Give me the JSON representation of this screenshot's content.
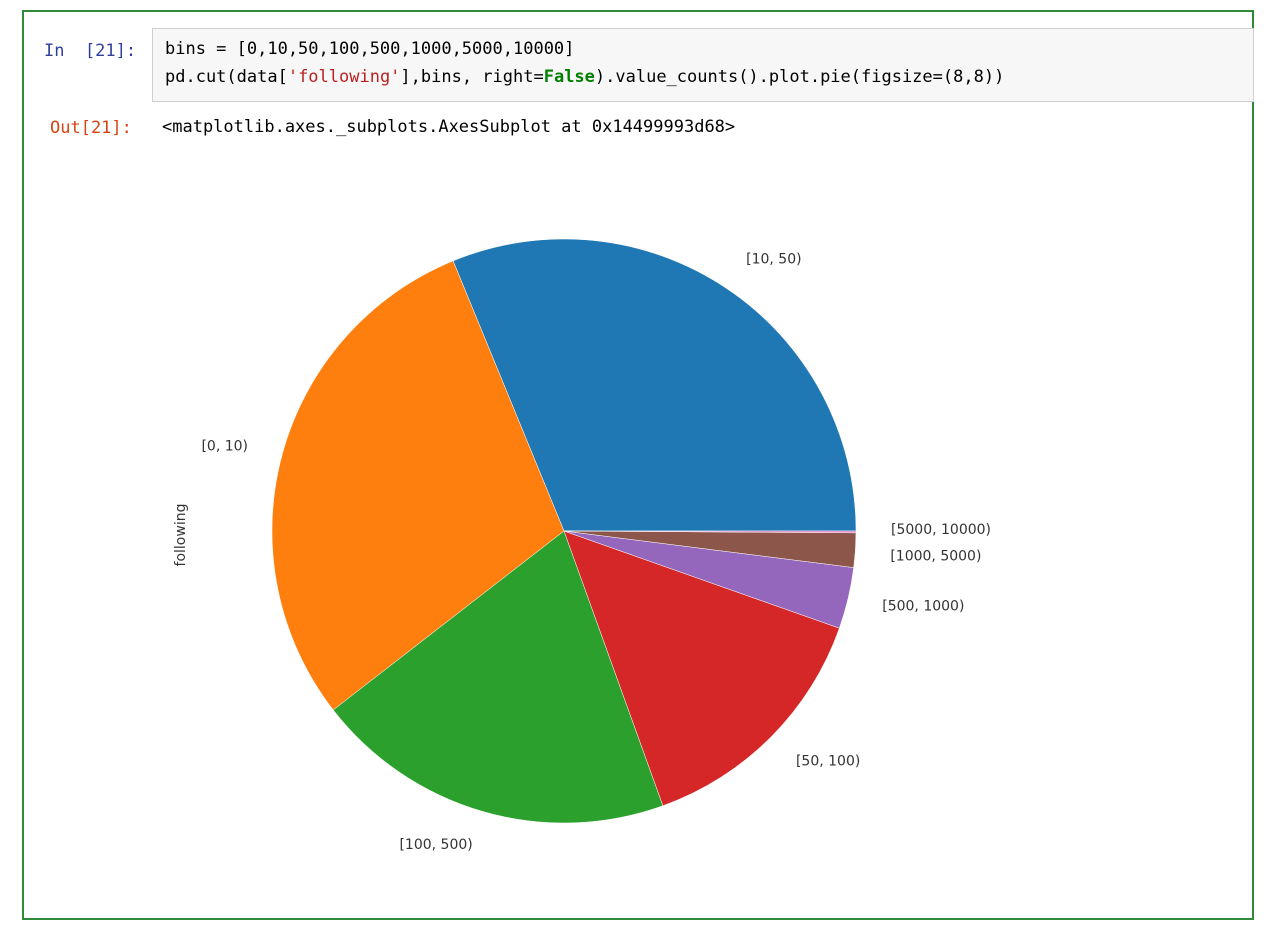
{
  "cell": {
    "in_prompt": "In  [21]:",
    "out_prompt": "Out[21]:",
    "code_line1": "bins = [0,10,50,100,500,1000,5000,10000]",
    "code_line2_a": "pd.cut(data[",
    "code_line2_str": "'following'",
    "code_line2_b": "],bins, right=",
    "code_line2_kw": "False",
    "code_line2_c": ").value_counts().plot.pie(figsize=(8,8))",
    "output_text": "<matplotlib.axes._subplots.AxesSubplot at 0x14499993d68>"
  },
  "colors": {
    "frame": "#2e8b3a",
    "blue": "#1f77b4",
    "orange": "#ff7f0e",
    "green": "#2ca02c",
    "red": "#d62728",
    "purple": "#9467bd",
    "brown": "#8c564b"
  },
  "chart_data": {
    "type": "pie",
    "ylabel": "following",
    "startangle": 0,
    "counterclock": true,
    "slices": [
      {
        "label": "[10, 50)",
        "value": 31.2,
        "color": "#1f77b4"
      },
      {
        "label": "[0, 10)",
        "value": 29.3,
        "color": "#ff7f0e"
      },
      {
        "label": "[100, 500)",
        "value": 20.0,
        "color": "#2ca02c"
      },
      {
        "label": "[50, 100)",
        "value": 14.1,
        "color": "#d62728"
      },
      {
        "label": "[500, 1000)",
        "value": 3.4,
        "color": "#9467bd"
      },
      {
        "label": "[1000, 5000)",
        "value": 1.9,
        "color": "#8c564b"
      },
      {
        "label": "[5000, 10000)",
        "value": 0.1,
        "color": "#e377c2"
      }
    ]
  }
}
